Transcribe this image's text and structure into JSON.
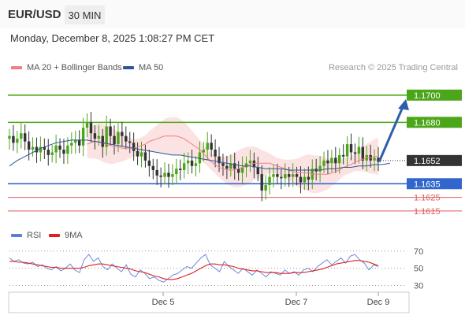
{
  "header": {
    "symbol": "EUR/USD",
    "timeframe": "30 MIN",
    "datetime": "Monday, December 8, 2025 1:08:27 PM CET"
  },
  "legend": {
    "ma20_label": "MA 20 + Bollinger Bands",
    "ma20_color": "#f08080",
    "ma50_label": "MA 50",
    "ma50_color": "#2f5597"
  },
  "credit": "Research © 2025 Trading Central",
  "colors": {
    "resistance": "#4ca61a",
    "support": "#3366cc",
    "minor_support": "#e05a5a",
    "current": "#333333",
    "arrow": "#2c5fa8",
    "bull_candle": "#4ca61a",
    "bear_candle": "#333333",
    "band_fill": "#fbd9d9",
    "rsi": "#5b7fd6",
    "rsi_ma": "#e02020"
  },
  "chart_data": [
    {
      "type": "candlestick",
      "title": "",
      "ylim": [
        1.1608,
        1.1712
      ],
      "x_ticks": [
        "Dec 5",
        "Dec 7",
        "Dec 9"
      ],
      "levels": [
        {
          "value": 1.17,
          "label": "1.1700",
          "kind": "resistance"
        },
        {
          "value": 1.168,
          "label": "1.1680",
          "kind": "resistance"
        },
        {
          "value": 1.1652,
          "label": "1.1652",
          "kind": "current"
        },
        {
          "value": 1.1635,
          "label": "1.1635",
          "kind": "support"
        },
        {
          "value": 1.1625,
          "label": "1.1625",
          "kind": "minor_support"
        },
        {
          "value": 1.1615,
          "label": "1.1615",
          "kind": "minor_support"
        }
      ],
      "forecast_arrow": {
        "from": 1.1651,
        "to": 1.1697
      },
      "close": [
        1.167,
        1.1665,
        1.1668,
        1.1672,
        1.1666,
        1.166,
        1.1662,
        1.1658,
        1.1662,
        1.166,
        1.1656,
        1.1658,
        1.1663,
        1.166,
        1.1657,
        1.1663,
        1.1665,
        1.1667,
        1.1663,
        1.1676,
        1.168,
        1.1672,
        1.1668,
        1.167,
        1.1662,
        1.1677,
        1.167,
        1.1664,
        1.1673,
        1.167,
        1.1666,
        1.1665,
        1.1659,
        1.1655,
        1.1658,
        1.1652,
        1.1648,
        1.1645,
        1.1641,
        1.164,
        1.1643,
        1.164,
        1.1642,
        1.1646,
        1.1645,
        1.165,
        1.1652,
        1.1648,
        1.165,
        1.1658,
        1.166,
        1.1665,
        1.166,
        1.1655,
        1.165,
        1.1648,
        1.1646,
        1.165,
        1.1646,
        1.1643,
        1.1647,
        1.165,
        1.1652,
        1.1647,
        1.1642,
        1.163,
        1.1634,
        1.164,
        1.1642,
        1.164,
        1.1639,
        1.1642,
        1.164,
        1.1642,
        1.164,
        1.1636,
        1.164,
        1.1638,
        1.1646,
        1.1644,
        1.1648,
        1.1652,
        1.165,
        1.1654,
        1.165,
        1.1656,
        1.1655,
        1.1664,
        1.1658,
        1.1657,
        1.1662,
        1.1652,
        1.1656,
        1.1652,
        1.1654,
        1.1651
      ],
      "ma20": [
        1.1664,
        1.1665,
        1.1666,
        1.1666,
        1.1665,
        1.1664,
        1.1663,
        1.1662,
        1.1662,
        1.1661,
        1.1661,
        1.1661,
        1.1661,
        1.1662,
        1.1663,
        1.1664,
        1.1666,
        1.1667,
        1.1668,
        1.1669,
        1.167,
        1.167,
        1.167,
        1.167,
        1.1669,
        1.1668,
        1.1666,
        1.1664,
        1.1662,
        1.166,
        1.1657,
        1.1654,
        1.1651,
        1.1649,
        1.1647,
        1.1646,
        1.1645,
        1.1645,
        1.1645,
        1.1646,
        1.1647,
        1.1648,
        1.1649,
        1.165,
        1.165,
        1.165,
        1.165,
        1.165,
        1.1649,
        1.1648,
        1.1647,
        1.1646,
        1.1645,
        1.1644,
        1.1643,
        1.1643,
        1.1643,
        1.1643,
        1.1642,
        1.1642,
        1.1642,
        1.1642,
        1.1642,
        1.1643,
        1.1644,
        1.1645,
        1.1647,
        1.1648,
        1.1649,
        1.1651,
        1.1652,
        1.1653,
        1.1654,
        1.1654,
        1.1655,
        1.1655
      ],
      "ma20_offset": 20,
      "ma50": [
        1.1648,
        1.1652,
        1.1655,
        1.1658,
        1.1661,
        1.1663,
        1.1665,
        1.1666,
        1.1667,
        1.1667,
        1.1667,
        1.1666,
        1.1665,
        1.1664,
        1.1663,
        1.1662,
        1.1661,
        1.166,
        1.1659,
        1.1658,
        1.1657,
        1.1656,
        1.1656,
        1.1655,
        1.1654,
        1.1653,
        1.1652,
        1.1651,
        1.165,
        1.1649,
        1.1648,
        1.1648,
        1.1647,
        1.1646,
        1.1646,
        1.1646,
        1.1645,
        1.1645,
        1.1645,
        1.1645,
        1.1645,
        1.1646,
        1.1646,
        1.1647,
        1.1647,
        1.1648,
        1.1648,
        1.1649,
        1.1649,
        1.165
      ],
      "ma50_offset": 0,
      "ma50_step": 2
    },
    {
      "type": "line",
      "title": "",
      "ylim": [
        25,
        78
      ],
      "y_ticks": [
        70,
        50,
        30
      ],
      "series": [
        {
          "name": "RSI",
          "values": [
            62,
            58,
            60,
            56,
            55,
            57,
            52,
            54,
            50,
            48,
            52,
            47,
            50,
            55,
            48,
            45,
            60,
            66,
            58,
            62,
            52,
            48,
            55,
            50,
            46,
            54,
            43,
            40,
            48,
            44,
            38,
            40,
            36,
            34,
            38,
            42,
            44,
            48,
            52,
            50,
            56,
            62,
            66,
            54,
            50,
            46,
            58,
            52,
            48,
            44,
            50,
            46,
            42,
            48,
            44,
            40,
            46,
            44,
            42,
            48,
            44,
            46,
            42,
            48,
            50,
            46,
            52,
            56,
            60,
            54,
            58,
            62,
            56,
            64,
            66,
            60,
            56,
            48,
            54,
            52
          ]
        },
        {
          "name": "9MA",
          "values": [
            58,
            58,
            57,
            57,
            56,
            55,
            54,
            53,
            52,
            51,
            51,
            50,
            50,
            50,
            50,
            50,
            51,
            53,
            54,
            55,
            55,
            54,
            53,
            52,
            51,
            50,
            49,
            47,
            46,
            45,
            43,
            41,
            40,
            38,
            37,
            37,
            38,
            40,
            42,
            44,
            47,
            50,
            53,
            55,
            55,
            54,
            54,
            53,
            52,
            50,
            49,
            48,
            47,
            47,
            46,
            45,
            45,
            45,
            44,
            44,
            44,
            45,
            45,
            45,
            46,
            47,
            48,
            49,
            51,
            53,
            55,
            56,
            57,
            58,
            59,
            59,
            58,
            57,
            55,
            53
          ]
        }
      ]
    }
  ]
}
